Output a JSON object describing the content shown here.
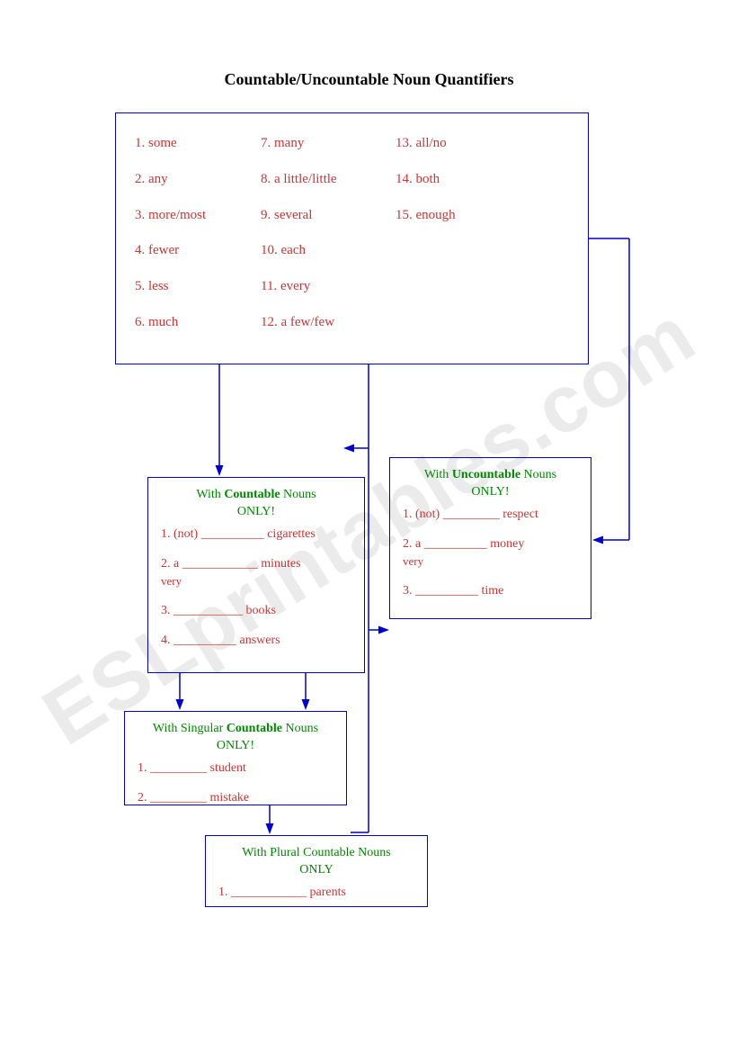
{
  "title": "Countable/Uncountable Noun Quantifiers",
  "watermark": "ESLprintables.com",
  "colors": {
    "border": "#0000cc",
    "arrow": "#0000cc",
    "red_text": "#cc3333",
    "green_text": "#008800",
    "title_text": "#000000",
    "background": "#ffffff"
  },
  "top_list": {
    "col1": [
      "1. some",
      "2. any",
      "3. more/most",
      "4. fewer",
      "5. less",
      "6. much"
    ],
    "col2": [
      "7. many",
      "8. a little/little",
      "9. several",
      "10. each",
      "11. every",
      "12. a few/few"
    ],
    "col3": [
      "13. all/no",
      "14. both",
      "15. enough"
    ]
  },
  "boxes": {
    "countable": {
      "title_pre": "With ",
      "title_bold": "Countable",
      "title_post": " Nouns",
      "title_line2": "ONLY!",
      "items": [
        "1. (not) __________ cigarettes",
        "2.     a ____________ minutes\n    very",
        "3. ___________ books",
        "4. __________ answers"
      ]
    },
    "uncountable": {
      "title_pre": "With ",
      "title_bold": "Uncountable",
      "title_post": " Nouns",
      "title_line2": "ONLY!",
      "items": [
        "1. (not) _________ respect",
        "2.   a  __________ money\n  very",
        "3. __________ time"
      ]
    },
    "singular": {
      "title_pre": "With Singular ",
      "title_bold": "Countable",
      "title_post": " Nouns",
      "title_line2": "ONLY!",
      "items": [
        "1. _________ student",
        "2. _________ mistake"
      ]
    },
    "plural": {
      "title_pre": "With Plural Countable Nouns",
      "title_bold": "",
      "title_post": "",
      "title_line2": "ONLY",
      "items": [
        "1. ____________ parents"
      ]
    }
  }
}
